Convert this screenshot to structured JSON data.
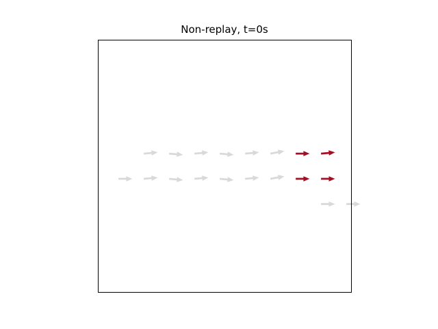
{
  "chart_data": {
    "type": "quiver",
    "title": "Non-replay, t=0s",
    "xlabel": "",
    "ylabel": "",
    "xlim": [
      0,
      10
    ],
    "ylim": [
      0,
      10
    ],
    "grid": false,
    "ticks": false,
    "colors": {
      "inactive": "#d9d9d9",
      "active": "#a50f25",
      "frame": "#000000"
    },
    "series": [
      {
        "color_role": "inactive",
        "points": [
          {
            "x": 1.8,
            "y": 5.5,
            "u": 0.55,
            "v": 0.05
          },
          {
            "x": 2.8,
            "y": 5.5,
            "u": 0.55,
            "v": -0.05
          },
          {
            "x": 3.8,
            "y": 5.5,
            "u": 0.55,
            "v": 0.05
          },
          {
            "x": 4.8,
            "y": 5.5,
            "u": 0.55,
            "v": -0.05
          },
          {
            "x": 5.8,
            "y": 5.5,
            "u": 0.55,
            "v": 0.05
          },
          {
            "x": 6.8,
            "y": 5.5,
            "u": 0.55,
            "v": 0.1
          },
          {
            "x": 0.8,
            "y": 4.5,
            "u": 0.55,
            "v": 0.0
          },
          {
            "x": 1.8,
            "y": 4.5,
            "u": 0.55,
            "v": 0.05
          },
          {
            "x": 2.8,
            "y": 4.5,
            "u": 0.55,
            "v": -0.05
          },
          {
            "x": 3.8,
            "y": 4.5,
            "u": 0.55,
            "v": 0.05
          },
          {
            "x": 4.8,
            "y": 4.5,
            "u": 0.55,
            "v": -0.05
          },
          {
            "x": 5.8,
            "y": 4.5,
            "u": 0.55,
            "v": 0.05
          },
          {
            "x": 6.8,
            "y": 4.5,
            "u": 0.55,
            "v": 0.1
          },
          {
            "x": 8.8,
            "y": 3.5,
            "u": 0.55,
            "v": 0.0
          },
          {
            "x": 9.8,
            "y": 3.5,
            "u": 0.55,
            "v": 0.0
          }
        ]
      },
      {
        "color_role": "active",
        "points": [
          {
            "x": 7.8,
            "y": 5.5,
            "u": 0.55,
            "v": 0.0
          },
          {
            "x": 8.8,
            "y": 5.5,
            "u": 0.55,
            "v": 0.05
          },
          {
            "x": 7.8,
            "y": 4.5,
            "u": 0.55,
            "v": 0.0
          },
          {
            "x": 8.8,
            "y": 4.5,
            "u": 0.55,
            "v": 0.0
          }
        ]
      }
    ]
  }
}
